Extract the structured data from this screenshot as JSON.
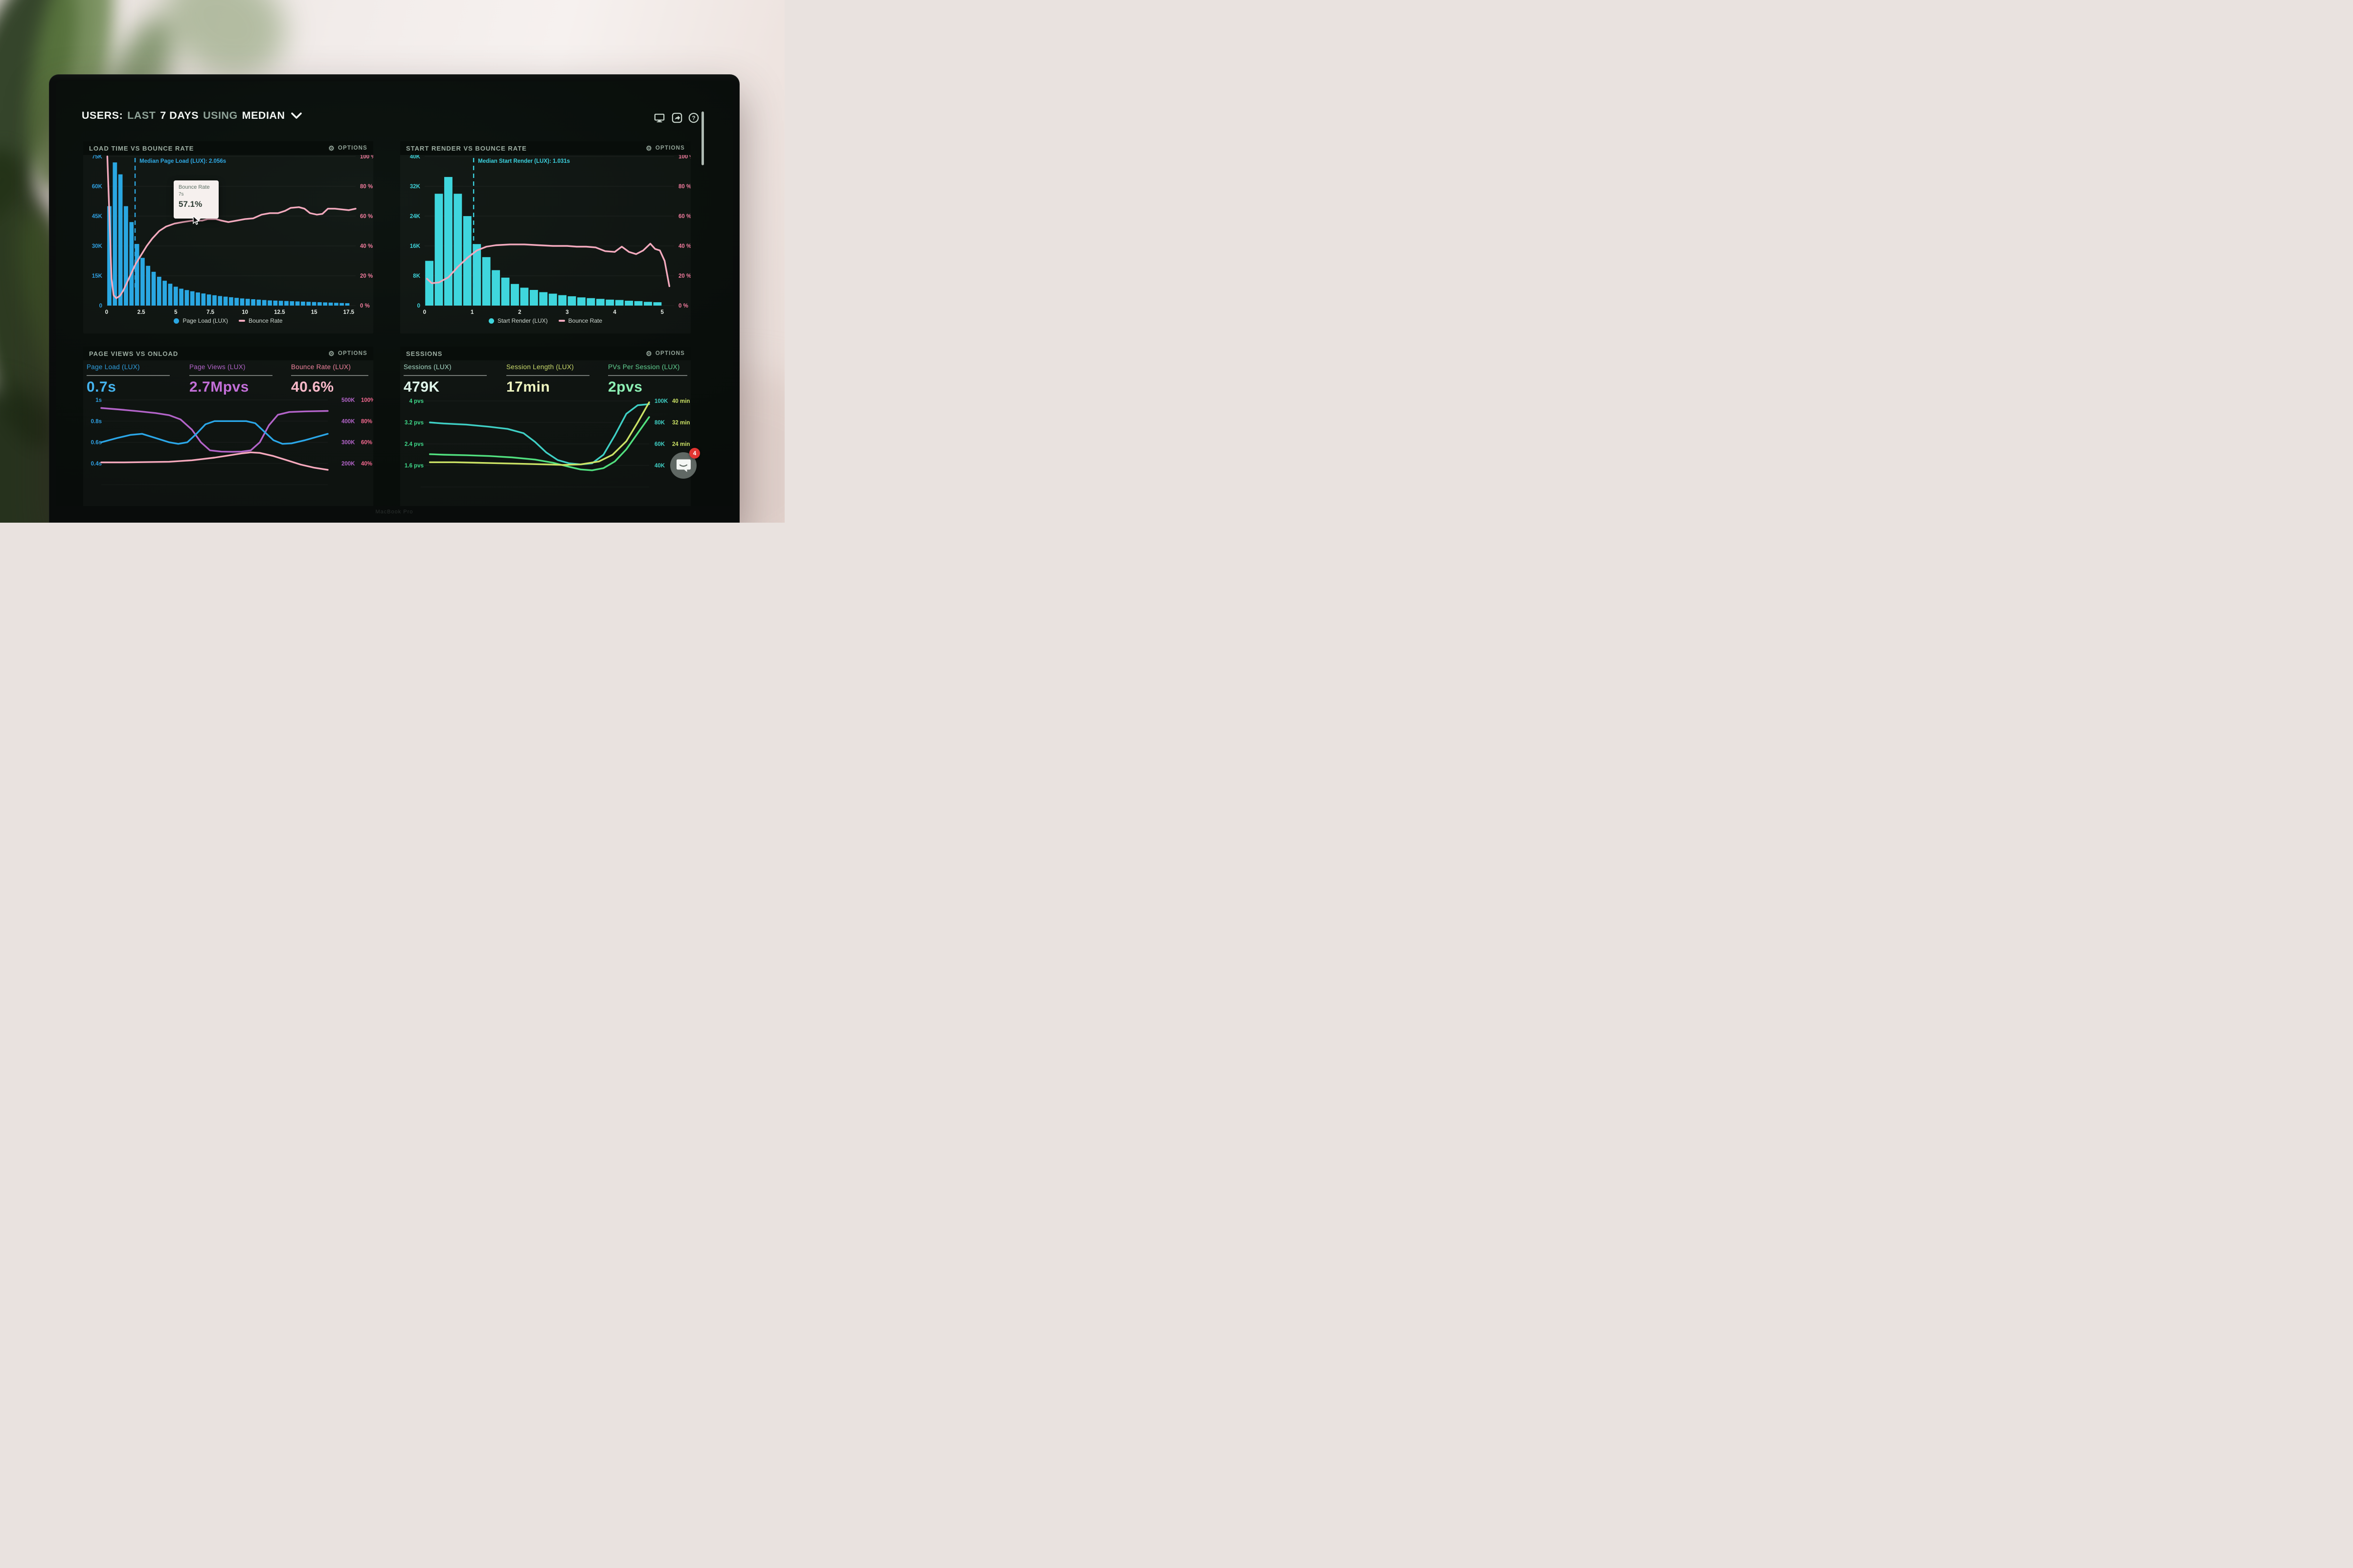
{
  "header": {
    "title_parts": [
      {
        "text": "USERS:",
        "muted": false
      },
      {
        "text": "LAST",
        "muted": true
      },
      {
        "text": "7 DAYS",
        "muted": false
      },
      {
        "text": "USING",
        "muted": true
      },
      {
        "text": "MEDIAN",
        "muted": false
      }
    ],
    "icons": [
      "display-icon",
      "share-icon",
      "help-icon"
    ]
  },
  "scrollbar": {
    "visible": true
  },
  "panels": [
    {
      "title": "LOAD TIME VS BOUNCE RATE",
      "options_label": "OPTIONS",
      "annotation": {
        "text": "Median Page Load (LUX): 2.056s",
        "x": 2.056,
        "color": "#2fa9e4"
      },
      "tooltip": {
        "title": "Bounce Rate",
        "time": "7s",
        "value": "57.1%"
      },
      "left_axis": [
        "75K",
        "60K",
        "45K",
        "30K",
        "15K",
        "0"
      ],
      "right_axis": [
        "100 %",
        "80 %",
        "60 %",
        "40 %",
        "20 %",
        "0 %"
      ],
      "x_ticks": [
        0,
        2.5,
        5,
        7.5,
        10,
        12.5,
        15,
        17.5
      ],
      "legend": [
        {
          "label": "Page Load (LUX)",
          "color": "#2aa7e2",
          "marker": "dot"
        },
        {
          "label": "Bounce Rate",
          "color": "#f3aabe",
          "marker": "dash"
        }
      ],
      "chart_data": {
        "type": "bar+line",
        "x_domain": [
          0,
          18
        ],
        "xlabel": "seconds",
        "bar_series": "Page Load (LUX) sessions (K)",
        "bar_bin": 0.4,
        "left_axis_max": 75,
        "bar_color": "#2aa7e2",
        "bar_values": [
          50,
          72,
          66,
          50,
          42,
          31,
          24,
          20,
          17,
          14.5,
          12.5,
          11,
          9.5,
          8.5,
          7.8,
          7.2,
          6.6,
          6.1,
          5.6,
          5.2,
          4.8,
          4.5,
          4.2,
          3.9,
          3.6,
          3.4,
          3.2,
          3.0,
          2.8,
          2.6,
          2.5,
          2.4,
          2.3,
          2.2,
          2.1,
          2.0,
          1.9,
          1.8,
          1.7,
          1.6,
          1.5,
          1.4,
          1.3,
          1.2
        ],
        "line_series": "Bounce Rate (%)",
        "line_color": "#f3aabe",
        "line_points": [
          [
            0.05,
            100
          ],
          [
            0.2,
            60
          ],
          [
            0.35,
            18
          ],
          [
            0.5,
            7
          ],
          [
            0.7,
            5
          ],
          [
            0.95,
            6.5
          ],
          [
            1.2,
            10
          ],
          [
            1.5,
            16
          ],
          [
            1.8,
            22
          ],
          [
            2.1,
            28
          ],
          [
            2.5,
            34
          ],
          [
            2.9,
            40
          ],
          [
            3.3,
            45
          ],
          [
            3.8,
            50
          ],
          [
            4.3,
            53
          ],
          [
            4.9,
            55
          ],
          [
            5.5,
            56
          ],
          [
            6.2,
            57
          ],
          [
            6.9,
            57
          ],
          [
            7.3,
            58
          ],
          [
            7.9,
            58
          ],
          [
            8.3,
            57
          ],
          [
            8.8,
            56
          ],
          [
            9.4,
            57
          ],
          [
            10,
            58
          ],
          [
            10.6,
            58.5
          ],
          [
            11.2,
            61
          ],
          [
            11.8,
            62
          ],
          [
            12.4,
            62
          ],
          [
            12.9,
            63.5
          ],
          [
            13.3,
            65.5
          ],
          [
            13.9,
            66
          ],
          [
            14.3,
            65
          ],
          [
            14.7,
            62
          ],
          [
            15.2,
            61
          ],
          [
            15.6,
            61.5
          ],
          [
            16,
            65
          ],
          [
            16.5,
            65
          ],
          [
            17,
            64.5
          ],
          [
            17.5,
            64
          ],
          [
            18,
            65
          ]
        ]
      }
    },
    {
      "title": "START RENDER VS BOUNCE RATE",
      "options_label": "OPTIONS",
      "annotation": {
        "text": "Median Start Render (LUX): 1.031s",
        "x": 1.031,
        "color": "#3cd2df"
      },
      "left_axis": [
        "40K",
        "32K",
        "24K",
        "16K",
        "8K",
        "0"
      ],
      "right_axis": [
        "100 %",
        "80 %",
        "60 %",
        "40 %",
        "20 %",
        "0 %"
      ],
      "x_ticks": [
        0,
        1,
        2,
        3,
        4,
        5
      ],
      "legend": [
        {
          "label": "Start Render (LUX)",
          "color": "#3fd6dd",
          "marker": "dot"
        },
        {
          "label": "Bounce Rate",
          "color": "#f3aabe",
          "marker": "dash"
        }
      ],
      "chart_data": {
        "type": "bar+line",
        "x_domain": [
          0,
          5.25
        ],
        "xlabel": "seconds",
        "bar_series": "Start Render (LUX) sessions (K)",
        "bar_bin": 0.2,
        "left_axis_max": 40,
        "bar_color": "#3fd6dd",
        "bar_values": [
          12,
          30,
          34.5,
          30,
          24,
          16.5,
          13,
          9.5,
          7.5,
          5.8,
          4.8,
          4.2,
          3.6,
          3.2,
          2.8,
          2.5,
          2.2,
          2.0,
          1.8,
          1.6,
          1.5,
          1.3,
          1.2,
          1.0,
          0.9
        ],
        "line_series": "Bounce Rate (%)",
        "line_color": "#f3aabe",
        "line_points": [
          [
            0.05,
            18
          ],
          [
            0.15,
            15
          ],
          [
            0.3,
            15.5
          ],
          [
            0.5,
            19
          ],
          [
            0.7,
            26
          ],
          [
            0.9,
            32
          ],
          [
            1.1,
            37
          ],
          [
            1.3,
            39.5
          ],
          [
            1.5,
            40.5
          ],
          [
            1.8,
            41
          ],
          [
            2.1,
            41
          ],
          [
            2.4,
            40.5
          ],
          [
            2.7,
            40
          ],
          [
            3.0,
            40
          ],
          [
            3.2,
            39.5
          ],
          [
            3.4,
            39.5
          ],
          [
            3.6,
            39
          ],
          [
            3.8,
            36.5
          ],
          [
            4.0,
            36
          ],
          [
            4.15,
            39.5
          ],
          [
            4.3,
            36
          ],
          [
            4.45,
            34.5
          ],
          [
            4.6,
            37
          ],
          [
            4.75,
            41.5
          ],
          [
            4.85,
            38
          ],
          [
            4.95,
            37
          ],
          [
            5.05,
            30
          ],
          [
            5.15,
            13
          ]
        ]
      }
    },
    {
      "title": "PAGE VIEWS VS ONLOAD",
      "options_label": "OPTIONS",
      "metrics": [
        {
          "label": "Page Load (LUX)",
          "value": "0.7s",
          "label_color": "#2f9fe0",
          "value_color": "#45b4ef"
        },
        {
          "label": "Page Views (LUX)",
          "value": "2.7Mpvs",
          "label_color": "#b364c9",
          "value_color": "#c36fd8"
        },
        {
          "label": "Bounce Rate (LUX)",
          "value": "40.6%",
          "label_color": "#f2849f",
          "value_color": "#f8b9c9"
        }
      ],
      "left_axis": [
        "1s",
        "0.8s",
        "0.6s",
        "0.4s"
      ],
      "right_axis_outer": [
        "500K",
        "400K",
        "300K",
        "200K"
      ],
      "right_axis_inner": [
        "100%",
        "80%",
        "60%",
        "40%"
      ],
      "chart_data": {
        "type": "line",
        "x_domain": [
          0,
          1
        ],
        "series": [
          {
            "name": "Page Views (LUX)",
            "unit": "K",
            "color": "#b364c9",
            "range_top": 500,
            "range_step": 100,
            "points": [
              [
                0,
                462
              ],
              [
                0.08,
                455
              ],
              [
                0.16,
                447
              ],
              [
                0.24,
                438
              ],
              [
                0.3,
                428
              ],
              [
                0.35,
                408
              ],
              [
                0.4,
                360
              ],
              [
                0.44,
                300
              ],
              [
                0.48,
                262
              ],
              [
                0.53,
                256
              ],
              [
                0.58,
                255
              ],
              [
                0.62,
                256
              ],
              [
                0.66,
                262
              ],
              [
                0.7,
                300
              ],
              [
                0.74,
                380
              ],
              [
                0.78,
                430
              ],
              [
                0.83,
                443
              ],
              [
                0.9,
                446
              ],
              [
                1,
                448
              ]
            ]
          },
          {
            "name": "Page Load (LUX)",
            "unit": "s",
            "color": "#2ba7e8",
            "range_top": 1,
            "range_step": 0.2,
            "points": [
              [
                0,
                0.6
              ],
              [
                0.07,
                0.64
              ],
              [
                0.13,
                0.67
              ],
              [
                0.18,
                0.68
              ],
              [
                0.24,
                0.64
              ],
              [
                0.3,
                0.6
              ],
              [
                0.34,
                0.585
              ],
              [
                0.38,
                0.6
              ],
              [
                0.42,
                0.68
              ],
              [
                0.46,
                0.77
              ],
              [
                0.5,
                0.8
              ],
              [
                0.58,
                0.8
              ],
              [
                0.64,
                0.8
              ],
              [
                0.68,
                0.78
              ],
              [
                0.72,
                0.7
              ],
              [
                0.76,
                0.62
              ],
              [
                0.8,
                0.585
              ],
              [
                0.84,
                0.59
              ],
              [
                0.9,
                0.62
              ],
              [
                0.95,
                0.65
              ],
              [
                1,
                0.68
              ]
            ]
          },
          {
            "name": "Bounce Rate (LUX)",
            "unit": "%",
            "color": "#f6a9bd",
            "range_top": 100,
            "range_step": 20,
            "points": [
              [
                0,
                41
              ],
              [
                0.1,
                41
              ],
              [
                0.2,
                41.3
              ],
              [
                0.3,
                41.6
              ],
              [
                0.4,
                43
              ],
              [
                0.5,
                45.5
              ],
              [
                0.56,
                47.5
              ],
              [
                0.62,
                49.5
              ],
              [
                0.66,
                50.5
              ],
              [
                0.7,
                50
              ],
              [
                0.76,
                47
              ],
              [
                0.82,
                43
              ],
              [
                0.88,
                39
              ],
              [
                0.94,
                36
              ],
              [
                1,
                34
              ]
            ]
          }
        ]
      }
    },
    {
      "title": "SESSIONS",
      "options_label": "OPTIONS",
      "metrics": [
        {
          "label": "Sessions (LUX)",
          "value": "479K",
          "label_color": "#a9dcc9",
          "value_color": "#e0f6eb"
        },
        {
          "label": "Session Length (LUX)",
          "value": "17min",
          "label_color": "#cede6e",
          "value_color": "#eef4c0"
        },
        {
          "label": "PVs Per Session (LUX)",
          "value": "2pvs",
          "label_color": "#62d394",
          "value_color": "#8df0b4"
        }
      ],
      "left_axis": [
        "4 pvs",
        "3.2 pvs",
        "2.4 pvs",
        "1.6 pvs"
      ],
      "right_axis_outer": [
        "100K",
        "80K",
        "60K",
        "40K"
      ],
      "right_axis_inner": [
        "40 min",
        "32 min",
        "24 min"
      ],
      "chart_data": {
        "type": "line",
        "x_domain": [
          0,
          1
        ],
        "series": [
          {
            "name": "Sessions (LUX)",
            "unit": "K",
            "color": "#3fd0c5",
            "range_top": 100,
            "range_step": 20,
            "points": [
              [
                0.04,
                80
              ],
              [
                0.1,
                79
              ],
              [
                0.2,
                78
              ],
              [
                0.3,
                76
              ],
              [
                0.38,
                74
              ],
              [
                0.45,
                70
              ],
              [
                0.5,
                62
              ],
              [
                0.55,
                52
              ],
              [
                0.6,
                45
              ],
              [
                0.65,
                42
              ],
              [
                0.7,
                41
              ],
              [
                0.75,
                42
              ],
              [
                0.8,
                50
              ],
              [
                0.85,
                68
              ],
              [
                0.9,
                88
              ],
              [
                0.95,
                96
              ],
              [
                1,
                97
              ]
            ]
          },
          {
            "name": "PVs Per Session (LUX)",
            "unit": "pvs",
            "color": "#51e07f",
            "range_top": 4,
            "range_step": 0.8,
            "points": [
              [
                0.04,
                2.02
              ],
              [
                0.1,
                2.0
              ],
              [
                0.2,
                1.98
              ],
              [
                0.3,
                1.95
              ],
              [
                0.4,
                1.9
              ],
              [
                0.5,
                1.82
              ],
              [
                0.58,
                1.7
              ],
              [
                0.65,
                1.55
              ],
              [
                0.7,
                1.45
              ],
              [
                0.75,
                1.42
              ],
              [
                0.8,
                1.5
              ],
              [
                0.85,
                1.75
              ],
              [
                0.9,
                2.2
              ],
              [
                0.95,
                2.8
              ],
              [
                1,
                3.4
              ]
            ]
          },
          {
            "name": "Session Length (LUX)",
            "unit": "min",
            "color": "#cbe265",
            "range_top": 40,
            "range_step": 8,
            "points": [
              [
                0.04,
                17.2
              ],
              [
                0.15,
                17.2
              ],
              [
                0.25,
                17
              ],
              [
                0.35,
                16.8
              ],
              [
                0.45,
                16.6
              ],
              [
                0.55,
                16.4
              ],
              [
                0.62,
                16.2
              ],
              [
                0.7,
                16.4
              ],
              [
                0.78,
                17.5
              ],
              [
                0.84,
                20
              ],
              [
                0.9,
                25
              ],
              [
                0.95,
                32
              ],
              [
                1,
                39.5
              ]
            ]
          }
        ]
      }
    }
  ],
  "chat": {
    "badge": "4"
  },
  "laptop_label": "MacBook Pro",
  "colors": {
    "screen_bg": "#0a0f0c",
    "panel_header_bg": "#080d0a",
    "blue": "#2aa7e2",
    "cyan": "#3fd6dd",
    "pink_line": "#f3aabe",
    "pink_axis": "#f27c9e",
    "purple": "#b364c9",
    "green": "#3fd98a",
    "yellow_green": "#cbe265",
    "teal": "#3fd0c5",
    "badge_red": "#e23531"
  }
}
